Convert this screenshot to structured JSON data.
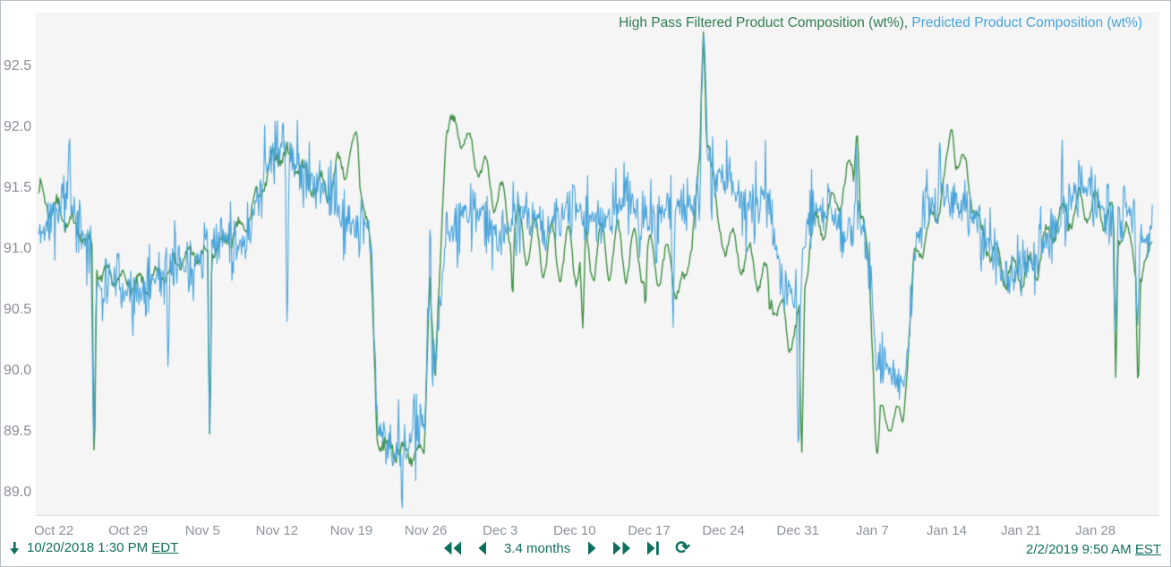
{
  "legend": {
    "series1_label": "High Pass Filtered Product Composition (wt%)",
    "separator": ", ",
    "series2_label": "Predicted Product Composition (wt%)"
  },
  "toolbar": {
    "start_date": "10/20/2018 1:30 PM",
    "start_timezone": "EDT",
    "range_label": "3.4 months",
    "end_date": "2/2/2019 9:50 AM",
    "end_timezone": "EST"
  },
  "colors": {
    "series1_green": "#3f9043",
    "legend_green": "#2e7e4f",
    "series2_blue": "#47a3da",
    "toolbar_teal": "#0c6e5d",
    "axis_text_gray": "#8c929b",
    "plot_background": "#f5f5f6",
    "panel_border": "#b9bfc6"
  },
  "chart_data": {
    "type": "line",
    "title": "",
    "legend_position": "top-right",
    "grid": false,
    "y_axis": {
      "tick_values": [
        92.5,
        92.0,
        91.5,
        91.0,
        90.5,
        90.0,
        89.5,
        89.0
      ],
      "unit": "wt%"
    },
    "ylim": [
      88.82,
      92.94
    ],
    "xlim_days": [
      -0.25,
      105.45
    ],
    "x_axis": {
      "tick_labels": [
        "Oct 22",
        "Oct 29",
        "Nov 5",
        "Nov 12",
        "Nov 19",
        "Nov 26",
        "Dec 3",
        "Dec 10",
        "Dec 17",
        "Dec 24",
        "Dec 31",
        "Jan 7",
        "Jan 14",
        "Jan 21",
        "Jan 28"
      ],
      "tick_days": [
        1.44,
        8.44,
        15.44,
        22.44,
        29.44,
        36.44,
        43.44,
        50.44,
        57.44,
        64.44,
        71.44,
        78.44,
        85.44,
        92.44,
        99.44
      ],
      "start_datetime": "10/20/2018 1:30 PM EDT",
      "end_datetime": "2/2/2019 9:50 AM EST",
      "span": "3.4 months"
    },
    "series": [
      {
        "name": "High Pass Filtered Product Composition (wt%)",
        "color": "#3f9043",
        "style": "wavy",
        "seed": 7,
        "sample_step_days": 0.09,
        "wave_period_days": 1.55,
        "wave_phase": 0.6,
        "line_width": 1.4,
        "domain": [
          0,
          104.85
        ],
        "envelope": [
          [
            0,
            91.45,
            0.1,
            0.05
          ],
          [
            2,
            91.3,
            0.08,
            0.05
          ],
          [
            4.9,
            91.05,
            0.06,
            0.04
          ],
          [
            5.6,
            90.8,
            0.06,
            0.04
          ],
          [
            10,
            90.7,
            0.07,
            0.04
          ],
          [
            14,
            90.95,
            0.07,
            0.04
          ],
          [
            16,
            90.95,
            0.05,
            0.04
          ],
          [
            19.5,
            91.2,
            0.08,
            0.04
          ],
          [
            21.5,
            91.6,
            0.08,
            0.05
          ],
          [
            22.5,
            91.8,
            0.08,
            0.05
          ],
          [
            24.5,
            91.7,
            0.08,
            0.05
          ],
          [
            25.5,
            91.55,
            0.08,
            0.04
          ],
          [
            27.3,
            91.5,
            0.12,
            0.04
          ],
          [
            28.6,
            91.7,
            0.15,
            0.03
          ],
          [
            29.8,
            91.8,
            0.1,
            0.03
          ],
          [
            30.6,
            91.4,
            0.08,
            0.04
          ],
          [
            31.2,
            91.05,
            0.05,
            0.04
          ],
          [
            31.9,
            89.4,
            0.06,
            0.06
          ],
          [
            36.3,
            89.3,
            0.06,
            0.06
          ],
          [
            36.8,
            90.85,
            0.08,
            0.04
          ],
          [
            37.3,
            89.85,
            0.05,
            0.04
          ],
          [
            38.3,
            91.95,
            0.06,
            0.03
          ],
          [
            38.7,
            92.05,
            0.06,
            0.03
          ],
          [
            40.5,
            91.85,
            0.12,
            0.03
          ],
          [
            42.5,
            91.55,
            0.16,
            0.03
          ],
          [
            44.5,
            91.2,
            0.2,
            0.03
          ],
          [
            47,
            91.0,
            0.22,
            0.03
          ],
          [
            50,
            90.95,
            0.24,
            0.03
          ],
          [
            54,
            91.0,
            0.24,
            0.03
          ],
          [
            57,
            90.92,
            0.2,
            0.03
          ],
          [
            59.5,
            90.85,
            0.16,
            0.03
          ],
          [
            60.8,
            90.62,
            0.14,
            0.03
          ],
          [
            62.2,
            91.7,
            0.08,
            0.03
          ],
          [
            63.1,
            91.95,
            0.1,
            0.03
          ],
          [
            63.9,
            91.15,
            0.1,
            0.03
          ],
          [
            65.5,
            91.0,
            0.14,
            0.03
          ],
          [
            67.5,
            90.85,
            0.16,
            0.03
          ],
          [
            69,
            90.65,
            0.14,
            0.03
          ],
          [
            70.5,
            90.3,
            0.16,
            0.03
          ],
          [
            71.4,
            90.35,
            0.1,
            0.04
          ],
          [
            72.6,
            91.1,
            0.15,
            0.04
          ],
          [
            74.5,
            91.3,
            0.16,
            0.03
          ],
          [
            76.6,
            91.65,
            0.12,
            0.03
          ],
          [
            78.1,
            90.9,
            0.08,
            0.04
          ],
          [
            78.8,
            89.62,
            0.1,
            0.015
          ],
          [
            81.3,
            89.6,
            0.12,
            0.015
          ],
          [
            82.4,
            90.9,
            0.1,
            0.03
          ],
          [
            84.5,
            91.3,
            0.12,
            0.03
          ],
          [
            85.8,
            91.8,
            0.08,
            0.025
          ],
          [
            87.3,
            91.65,
            0.1,
            0.03
          ],
          [
            88.5,
            91.15,
            0.1,
            0.04
          ],
          [
            91,
            90.8,
            0.13,
            0.04
          ],
          [
            93.5,
            90.82,
            0.13,
            0.04
          ],
          [
            95.5,
            91.2,
            0.13,
            0.04
          ],
          [
            98,
            91.35,
            0.13,
            0.04
          ],
          [
            100.5,
            91.3,
            0.13,
            0.04
          ],
          [
            102.2,
            91.15,
            0.13,
            0.04
          ],
          [
            103.9,
            90.7,
            0.12,
            0.04
          ],
          [
            104.85,
            91.2,
            0.08,
            0.03
          ]
        ],
        "events": [
          [
            5.25,
            89.15,
            0.2
          ],
          [
            16.12,
            89.42,
            0.18
          ],
          [
            29.9,
            91.97,
            0.3
          ],
          [
            44.6,
            90.55,
            0.15
          ],
          [
            51.2,
            90.33,
            0.25
          ],
          [
            57.1,
            90.5,
            0.15
          ],
          [
            62.55,
            92.78,
            0.3
          ],
          [
            68.8,
            90.45,
            0.15
          ],
          [
            71.8,
            89.25,
            0.25
          ],
          [
            77.0,
            92.0,
            0.3
          ],
          [
            78.9,
            89.3,
            0.3
          ],
          [
            85.9,
            92.0,
            0.35
          ],
          [
            101.35,
            89.9,
            0.2
          ],
          [
            103.45,
            89.8,
            0.2
          ]
        ]
      },
      {
        "name": "Predicted Product Composition (wt%)",
        "color": "#47a3da",
        "style": "noisy",
        "seed": 11,
        "sample_step_days": 0.07,
        "line_width": 1.1,
        "domain": [
          0,
          104.85
        ],
        "envelope": [
          [
            0,
            91.2,
            0.3
          ],
          [
            2.6,
            91.3,
            0.33
          ],
          [
            4.9,
            91.1,
            0.28
          ],
          [
            5.6,
            90.75,
            0.26
          ],
          [
            8,
            90.65,
            0.28
          ],
          [
            11,
            90.75,
            0.28
          ],
          [
            14,
            90.95,
            0.26
          ],
          [
            16.5,
            91.0,
            0.24
          ],
          [
            19.5,
            91.15,
            0.28
          ],
          [
            21.5,
            91.6,
            0.32
          ],
          [
            22.6,
            91.8,
            0.3
          ],
          [
            24.3,
            91.75,
            0.33
          ],
          [
            25.5,
            91.5,
            0.28
          ],
          [
            27.5,
            91.45,
            0.28
          ],
          [
            29.5,
            91.25,
            0.28
          ],
          [
            31.2,
            91.05,
            0.26
          ],
          [
            31.9,
            89.5,
            0.3
          ],
          [
            34,
            89.4,
            0.38
          ],
          [
            36.4,
            89.5,
            0.35
          ],
          [
            36.8,
            90.8,
            0.4
          ],
          [
            37.3,
            90.0,
            0.35
          ],
          [
            38.2,
            91.15,
            0.3
          ],
          [
            40,
            91.25,
            0.28
          ],
          [
            44,
            91.2,
            0.26
          ],
          [
            48,
            91.25,
            0.26
          ],
          [
            52,
            91.3,
            0.26
          ],
          [
            56,
            91.3,
            0.28
          ],
          [
            60,
            91.3,
            0.3
          ],
          [
            61.8,
            91.4,
            0.33
          ],
          [
            62.6,
            92.0,
            0.45
          ],
          [
            63.3,
            91.6,
            0.38
          ],
          [
            65.5,
            91.4,
            0.32
          ],
          [
            68.3,
            91.5,
            0.36
          ],
          [
            69.8,
            90.7,
            0.28
          ],
          [
            71.2,
            90.6,
            0.28
          ],
          [
            72.4,
            91.3,
            0.33
          ],
          [
            74.2,
            91.3,
            0.32
          ],
          [
            75.6,
            91.05,
            0.3
          ],
          [
            76.9,
            91.45,
            0.33
          ],
          [
            78.2,
            90.9,
            0.28
          ],
          [
            78.8,
            90.0,
            0.22
          ],
          [
            81.6,
            89.95,
            0.22
          ],
          [
            82.4,
            91.05,
            0.3
          ],
          [
            84.2,
            91.3,
            0.3
          ],
          [
            85.6,
            91.5,
            0.3
          ],
          [
            87.2,
            91.35,
            0.3
          ],
          [
            89.2,
            91.0,
            0.28
          ],
          [
            91.2,
            90.8,
            0.26
          ],
          [
            93.6,
            90.85,
            0.26
          ],
          [
            95.4,
            91.2,
            0.28
          ],
          [
            97.6,
            91.45,
            0.28
          ],
          [
            99.6,
            91.4,
            0.28
          ],
          [
            101.2,
            91.35,
            0.28
          ],
          [
            102.6,
            91.25,
            0.28
          ],
          [
            104.1,
            91.0,
            0.28
          ],
          [
            104.85,
            91.3,
            0.12
          ]
        ],
        "events": [
          [
            2.9,
            91.95,
            0.15
          ],
          [
            5.2,
            89.3,
            0.22
          ],
          [
            12.2,
            89.95,
            0.15
          ],
          [
            16.1,
            89.5,
            0.2
          ],
          [
            23.0,
            92.1,
            0.12
          ],
          [
            23.4,
            90.25,
            0.15
          ],
          [
            36.85,
            91.3,
            0.12
          ],
          [
            59.7,
            90.32,
            0.18
          ],
          [
            62.6,
            92.8,
            0.35
          ],
          [
            71.5,
            89.25,
            0.2
          ],
          [
            76.95,
            91.95,
            0.1
          ],
          [
            84.8,
            91.95,
            0.12
          ],
          [
            96.3,
            92.0,
            0.12
          ],
          [
            101.3,
            90.3,
            0.25
          ],
          [
            103.4,
            90.35,
            0.25
          ]
        ]
      }
    ]
  }
}
